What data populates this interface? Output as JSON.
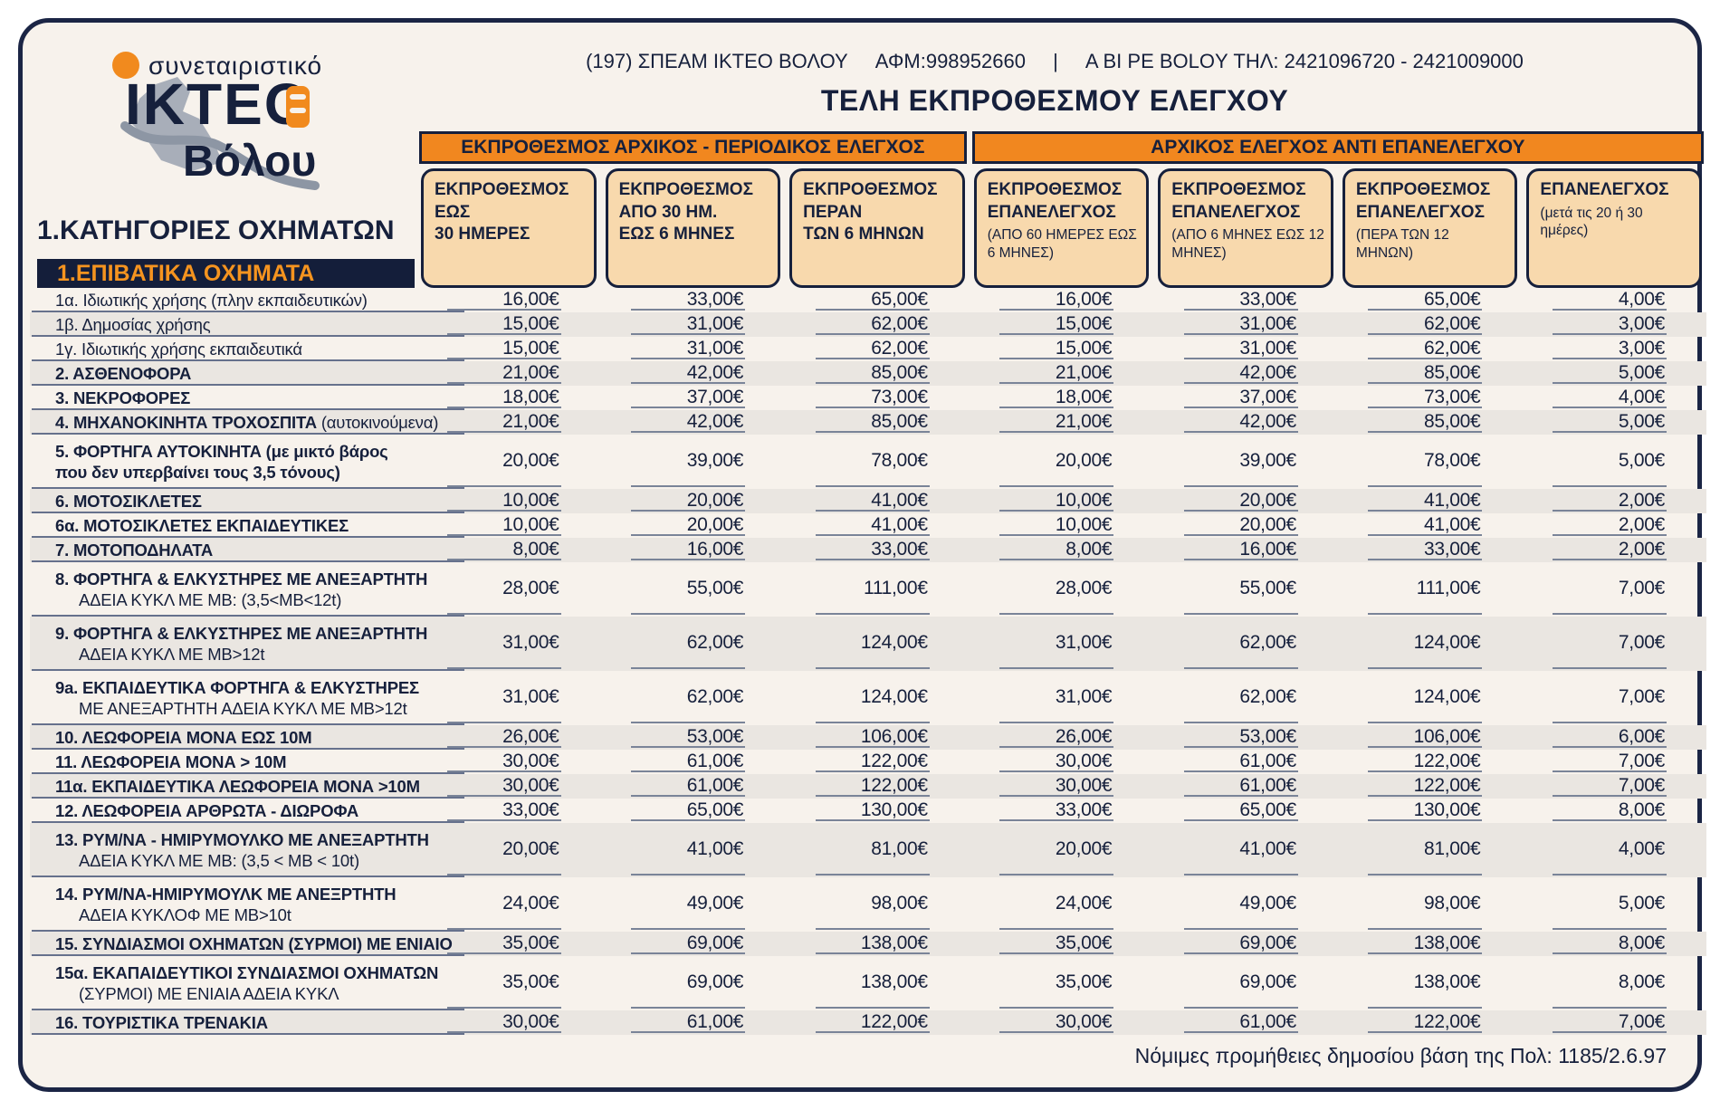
{
  "logo": {
    "coop": "συνεταιριστικό",
    "name": "ΙΚΤΕΟ",
    "city": "Βόλου"
  },
  "header": {
    "contact_name": "(197) ΣΠΕΑΜ ΙΚΤΕΟ ΒΟΛΟΥ",
    "contact_afm": "ΑΦΜ:998952660",
    "contact_sep": "|",
    "contact_tel": "A BI PE BOLOY ΤΗΛ: 2421096720 - 2421009000",
    "title": "ΤΕΛΗ ΕΚΠΡΟΘΕΣΜΟΥ ΕΛΕΓΧΟΥ"
  },
  "left": {
    "categories_title": "1.ΚΑΤΗΓΟΡΙΕΣ ΟΧΗΜΑΤΩΝ",
    "section_title": "1.ΕΠΙΒΑΤΙΚΑ ΟΧΗΜΑΤΑ"
  },
  "table": {
    "group_headers": [
      "ΕΚΠΡΟΘΕΣΜΟΣ ΑΡΧΙΚΟΣ - ΠΕΡΙΟΔΙΚΟΣ ΕΛΕΓΧΟΣ",
      "ΑΡΧΙΚΟΣ ΕΛΕΓΧΟΣ ΑΝΤΙ ΕΠΑΝΕΛΕΓΧΟΥ"
    ],
    "columns": [
      {
        "lines": [
          "ΕΚΠΡΟΘΕΣΜΟΣ",
          "ΕΩΣ",
          "30 ΗΜΕΡΕΣ"
        ],
        "note": ""
      },
      {
        "lines": [
          "ΕΚΠΡΟΘΕΣΜΟΣ",
          "ΑΠΟ 30 ΗΜ.",
          "ΕΩΣ 6 ΜΗΝΕΣ"
        ],
        "note": ""
      },
      {
        "lines": [
          "ΕΚΠΡΟΘΕΣΜΟΣ",
          "ΠΕΡΑΝ",
          "ΤΩΝ 6 ΜΗΝΩΝ"
        ],
        "note": ""
      },
      {
        "lines": [
          "ΕΚΠΡΟΘΕΣΜΟΣ",
          "ΕΠΑΝΕΛΕΓΧΟΣ"
        ],
        "note": "(ΑΠΟ 60 ΗΜΕΡΕΣ ΕΩΣ 6 ΜΗΝΕΣ)"
      },
      {
        "lines": [
          "ΕΚΠΡΟΘΕΣΜΟΣ",
          "ΕΠΑΝΕΛΕΓΧΟΣ"
        ],
        "note": "(ΑΠΟ 6 ΜΗΝΕΣ ΕΩΣ 12 ΜΗΝΕΣ)"
      },
      {
        "lines": [
          "ΕΚΠΡΟΘΕΣΜΟΣ",
          "ΕΠΑΝΕΛΕΓΧΟΣ"
        ],
        "note": "(ΠΕΡΑ ΤΩΝ 12 ΜΗΝΩΝ)"
      },
      {
        "lines": [
          "ΕΠΑΝΕΛΕΓΧΟΣ"
        ],
        "note": "(μετά τις 20 ή 30 ημέρες)"
      }
    ],
    "rows": [
      {
        "lines": [
          {
            "r": "1α. Ιδιωτικής χρήσης (πλην εκπαιδευτικών)"
          }
        ],
        "values": [
          "16,00€",
          "33,00€",
          "65,00€",
          "16,00€",
          "33,00€",
          "65,00€",
          "4,00€"
        ]
      },
      {
        "lines": [
          {
            "r": "1β. Δημοσίας χρήσης"
          }
        ],
        "values": [
          "15,00€",
          "31,00€",
          "62,00€",
          "15,00€",
          "31,00€",
          "62,00€",
          "3,00€"
        ]
      },
      {
        "lines": [
          {
            "r": "1γ. Ιδιωτικής χρήσης εκπαιδευτικά"
          }
        ],
        "values": [
          "15,00€",
          "31,00€",
          "62,00€",
          "15,00€",
          "31,00€",
          "62,00€",
          "3,00€"
        ]
      },
      {
        "lines": [
          {
            "b": "2. ΑΣΘΕΝΟΦΟΡΑ"
          }
        ],
        "values": [
          "21,00€",
          "42,00€",
          "85,00€",
          "21,00€",
          "42,00€",
          "85,00€",
          "5,00€"
        ]
      },
      {
        "lines": [
          {
            "b": "3. ΝΕΚΡΟΦΟΡΕΣ"
          }
        ],
        "values": [
          "18,00€",
          "37,00€",
          "73,00€",
          "18,00€",
          "37,00€",
          "73,00€",
          "4,00€"
        ]
      },
      {
        "lines": [
          {
            "b": "4. ΜΗΧΑΝΟΚΙΝΗΤΑ ΤΡΟΧΟΣΠΙΤΑ ",
            "r": "(αυτοκινούμενα)"
          }
        ],
        "values": [
          "21,00€",
          "42,00€",
          "85,00€",
          "21,00€",
          "42,00€",
          "85,00€",
          "5,00€"
        ]
      },
      {
        "lines": [
          {
            "b": "5. ΦΟΡΤΗΓΑ ΑΥΤΟΚΙΝΗΤΑ (με μικτό βάρος"
          },
          {
            "b": "που δεν υπερβαίνει τους 3,5 τόνους)",
            "ni": true
          }
        ],
        "values": [
          "20,00€",
          "39,00€",
          "78,00€",
          "20,00€",
          "39,00€",
          "78,00€",
          "5,00€"
        ]
      },
      {
        "lines": [
          {
            "b": "6. ΜΟΤΟΣΙΚΛΕΤΕΣ"
          }
        ],
        "values": [
          "10,00€",
          "20,00€",
          "41,00€",
          "10,00€",
          "20,00€",
          "41,00€",
          "2,00€"
        ]
      },
      {
        "lines": [
          {
            "b": "6α. ΜΟΤΟΣΙΚΛΕΤΕΣ ΕΚΠΑΙΔΕΥΤΙΚΕΣ"
          }
        ],
        "values": [
          "10,00€",
          "20,00€",
          "41,00€",
          "10,00€",
          "20,00€",
          "41,00€",
          "2,00€"
        ]
      },
      {
        "lines": [
          {
            "b": "7. ΜΟΤΟΠΟΔΗΛΑΤΑ"
          }
        ],
        "values": [
          "8,00€",
          "16,00€",
          "33,00€",
          "8,00€",
          "16,00€",
          "33,00€",
          "2,00€"
        ]
      },
      {
        "lines": [
          {
            "b": "8. ΦΟΡΤΗΓΑ & ΕΛΚΥΣΤΗΡΕΣ ΜΕ ΑΝΕΞΑΡΤΗΤΗ"
          },
          {
            "r": "ΑΔΕΙΑ ΚΥΚΛ ΜΕ ΜΒ: (3,5<ΜΒ<12t)"
          }
        ],
        "values": [
          "28,00€",
          "55,00€",
          "111,00€",
          "28,00€",
          "55,00€",
          "111,00€",
          "7,00€"
        ]
      },
      {
        "lines": [
          {
            "b": "9. ΦΟΡΤΗΓΑ & ΕΛΚΥΣΤΗΡΕΣ ΜΕ ΑΝΕΞΑΡΤΗΤΗ"
          },
          {
            "r": "ΑΔΕΙΑ ΚΥΚΛ ΜΕ ΜΒ>12t"
          }
        ],
        "values": [
          "31,00€",
          "62,00€",
          "124,00€",
          "31,00€",
          "62,00€",
          "124,00€",
          "7,00€"
        ]
      },
      {
        "lines": [
          {
            "b": "9a. ΕΚΠΑΙΔΕΥΤΙΚΑ ΦΟΡΤΗΓΑ & ΕΛΚΥΣΤΗΡΕΣ"
          },
          {
            "r": "ΜΕ ΑΝΕΞΑΡΤΗΤΗ ΑΔΕΙΑ ΚΥΚΛ ΜΕ ΜΒ>12t"
          }
        ],
        "values": [
          "31,00€",
          "62,00€",
          "124,00€",
          "31,00€",
          "62,00€",
          "124,00€",
          "7,00€"
        ]
      },
      {
        "lines": [
          {
            "b": "10. ΛΕΩΦΟΡΕΙΑ ΜΟΝΑ ΕΩΣ 10Μ"
          }
        ],
        "values": [
          "26,00€",
          "53,00€",
          "106,00€",
          "26,00€",
          "53,00€",
          "106,00€",
          "6,00€"
        ]
      },
      {
        "lines": [
          {
            "b": "11. ΛΕΩΦΟΡΕΙΑ ΜΟΝΑ > 10Μ"
          }
        ],
        "values": [
          "30,00€",
          "61,00€",
          "122,00€",
          "30,00€",
          "61,00€",
          "122,00€",
          "7,00€"
        ]
      },
      {
        "lines": [
          {
            "b": "11α. ΕΚΠΑΙΔΕΥΤΙΚΑ ΛΕΩΦΟΡΕΙΑ ΜΟΝΑ >10Μ"
          }
        ],
        "values": [
          "30,00€",
          "61,00€",
          "122,00€",
          "30,00€",
          "61,00€",
          "122,00€",
          "7,00€"
        ]
      },
      {
        "lines": [
          {
            "b": "12. ΛΕΩΦΟΡΕΙΑ ΑΡΘΡΩΤΑ - ΔΙΩΡΟΦΑ"
          }
        ],
        "values": [
          "33,00€",
          "65,00€",
          "130,00€",
          "33,00€",
          "65,00€",
          "130,00€",
          "8,00€"
        ]
      },
      {
        "lines": [
          {
            "b": "13. ΡΥΜ/ΝΑ - ΗΜΙΡΥΜΟΥΛΚΟ ΜΕ ΑΝΕΞΑΡΤΗΤΗ"
          },
          {
            "r": "ΑΔΕΙΑ ΚΥΚΛ ΜΕ ΜΒ: (3,5 < ΜΒ < 10t)"
          }
        ],
        "values": [
          "20,00€",
          "41,00€",
          "81,00€",
          "20,00€",
          "41,00€",
          "81,00€",
          "4,00€"
        ]
      },
      {
        "lines": [
          {
            "b": "14. ΡΥΜ/ΝΑ-ΗΜΙΡΥΜΟΥΛΚ ΜΕ ΑΝΕΞΡΤΗΤΗ"
          },
          {
            "r": "ΑΔΕΙΑ ΚΥΚΛΟΦ ΜΕ ΜΒ>10t"
          }
        ],
        "values": [
          "24,00€",
          "49,00€",
          "98,00€",
          "24,00€",
          "49,00€",
          "98,00€",
          "5,00€"
        ]
      },
      {
        "lines": [
          {
            "b": "15. ΣΥΝΔΙΑΣΜΟΙ ΟΧΗΜΑΤΩΝ (ΣΥΡΜΟΙ) ΜΕ ΕΝΙΑΙΟ"
          }
        ],
        "values": [
          "35,00€",
          "69,00€",
          "138,00€",
          "35,00€",
          "69,00€",
          "138,00€",
          "8,00€"
        ]
      },
      {
        "lines": [
          {
            "b": "15α. ΕΚΑΠΑΙΔΕΥΤΙΚΟΙ ΣΥΝΔΙΑΣΜΟΙ ΟΧΗΜΑΤΩΝ"
          },
          {
            "r": "(ΣΥΡΜΟΙ) ΜΕ ΕΝΙΑΙΑ ΑΔΕΙΑ ΚΥΚΛ"
          }
        ],
        "values": [
          "35,00€",
          "69,00€",
          "138,00€",
          "35,00€",
          "69,00€",
          "138,00€",
          "8,00€"
        ]
      },
      {
        "lines": [
          {
            "b": "16. ΤΟΥΡΙΣΤΙΚΑ ΤΡΕΝΑΚΙΑ"
          }
        ],
        "values": [
          "30,00€",
          "61,00€",
          "122,00€",
          "30,00€",
          "61,00€",
          "122,00€",
          "7,00€"
        ]
      }
    ],
    "footnote": "Νόμιμες προμήθειες δημοσίου βάση της Πολ: 1185/2.6.97"
  },
  "colors": {
    "navy": "#16203c",
    "orange_band": "#f1871f",
    "logo_orange": "#f18a1e",
    "tan_header_box": "#f8d9ad",
    "cream_background": "#f7f2ec",
    "shaded_row": "#eae6e1",
    "section_band_bg": "#141e3a",
    "section_band_text": "#f5941f"
  }
}
